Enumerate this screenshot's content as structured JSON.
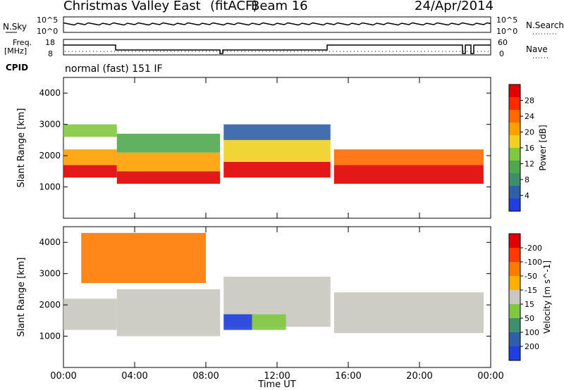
{
  "header": {
    "station": "Christmas Valley East",
    "fit": "(fitACF)",
    "beam": "Beam 16",
    "date": "24/Apr/2014",
    "mode": "normal (fast) 151 IF"
  },
  "strip_labels": {
    "nsky": "N.Sky",
    "nsearch": "N.Search",
    "freq_line1": "Freq.",
    "freq_line2": "[MHz]",
    "nave": "Nave",
    "cpid": "CPID",
    "noise_top": "10^5",
    "noise_bottom": "10^0",
    "noise_top_r": "10^5",
    "noise_bottom_r": "10^0",
    "freq_top": "18",
    "freq_bottom": "8",
    "nave_top": "60",
    "nave_bottom": "0"
  },
  "colors": {
    "power_scale": [
      "#1f3fe0",
      "#2f5fa8",
      "#3f8f6f",
      "#4fa84f",
      "#7fc83f",
      "#f0d020",
      "#ffa000",
      "#ff6a00",
      "#ff2a00",
      "#e00000"
    ],
    "velocity_scale": [
      "#1f3fe0",
      "#2f5fa8",
      "#3f8f6f",
      "#7fc83f",
      "#c8c8c0",
      "#ffb000",
      "#ff7a00",
      "#ff3a00",
      "#e00000"
    ]
  },
  "chart_data": [
    {
      "type": "heatmap",
      "title": "Power",
      "xlabel": "",
      "ylabel": "Slant Range [km]",
      "x_ticks": [
        "00:00",
        "04:00",
        "08:00",
        "12:00",
        "16:00",
        "20:00",
        "00:00"
      ],
      "y_ticks": [
        "1000",
        "2000",
        "3000",
        "4000"
      ],
      "ylim": [
        0,
        4500
      ],
      "xlim_hours": [
        0,
        24
      ],
      "colorbar_label": "Power [dB]",
      "colorbar_ticks": [
        "4",
        "8",
        "12",
        "16",
        "20",
        "24",
        "28"
      ],
      "bands": [
        {
          "t0": 0.0,
          "t1": 3.0,
          "r0": 1300,
          "r1": 1700,
          "level": 9
        },
        {
          "t0": 0.0,
          "t1": 3.0,
          "r0": 1700,
          "r1": 2200,
          "level": 6
        },
        {
          "t0": 0.0,
          "t1": 3.0,
          "r0": 2600,
          "r1": 3000,
          "level": 4
        },
        {
          "t0": 3.0,
          "t1": 8.8,
          "r0": 1100,
          "r1": 1500,
          "level": 9
        },
        {
          "t0": 3.0,
          "t1": 8.8,
          "r0": 1500,
          "r1": 2100,
          "level": 6
        },
        {
          "t0": 3.0,
          "t1": 8.8,
          "r0": 2100,
          "r1": 2700,
          "level": 3
        },
        {
          "t0": 9.0,
          "t1": 15.0,
          "r0": 1300,
          "r1": 1800,
          "level": 9
        },
        {
          "t0": 9.0,
          "t1": 15.0,
          "r0": 1800,
          "r1": 2500,
          "level": 5
        },
        {
          "t0": 9.0,
          "t1": 15.0,
          "r0": 2500,
          "r1": 3000,
          "level": 1
        },
        {
          "t0": 15.2,
          "t1": 23.6,
          "r0": 1100,
          "r1": 1700,
          "level": 9
        },
        {
          "t0": 15.2,
          "t1": 23.6,
          "r0": 1700,
          "r1": 2200,
          "level": 7
        }
      ]
    },
    {
      "type": "heatmap",
      "title": "Velocity",
      "xlabel": "Time UT",
      "ylabel": "Slant Range [km]",
      "x_ticks": [
        "00:00",
        "04:00",
        "08:00",
        "12:00",
        "16:00",
        "20:00",
        "00:00"
      ],
      "y_ticks": [
        "1000",
        "2000",
        "3000",
        "4000"
      ],
      "ylim": [
        0,
        4500
      ],
      "xlim_hours": [
        0,
        24
      ],
      "colorbar_label": "Velocity [m s^-1]",
      "colorbar_ticks": [
        "200",
        "100",
        "50",
        "15",
        "-15",
        "-50",
        "-100",
        "-200"
      ],
      "bands": [
        {
          "t0": 0.0,
          "t1": 3.0,
          "r0": 1200,
          "r1": 2200,
          "level": 4
        },
        {
          "t0": 3.0,
          "t1": 8.8,
          "r0": 1000,
          "r1": 2500,
          "level": 4
        },
        {
          "t0": 9.0,
          "t1": 15.0,
          "r0": 1300,
          "r1": 2900,
          "level": 4
        },
        {
          "t0": 9.0,
          "t1": 10.6,
          "r0": 1200,
          "r1": 1700,
          "level": 0
        },
        {
          "t0": 10.6,
          "t1": 12.5,
          "r0": 1200,
          "r1": 1700,
          "level": 3
        },
        {
          "t0": 15.2,
          "t1": 23.6,
          "r0": 1100,
          "r1": 2400,
          "level": 4
        },
        {
          "t0": 1.0,
          "t1": 8.0,
          "r0": 2700,
          "r1": 4300,
          "level": 6
        }
      ]
    }
  ]
}
